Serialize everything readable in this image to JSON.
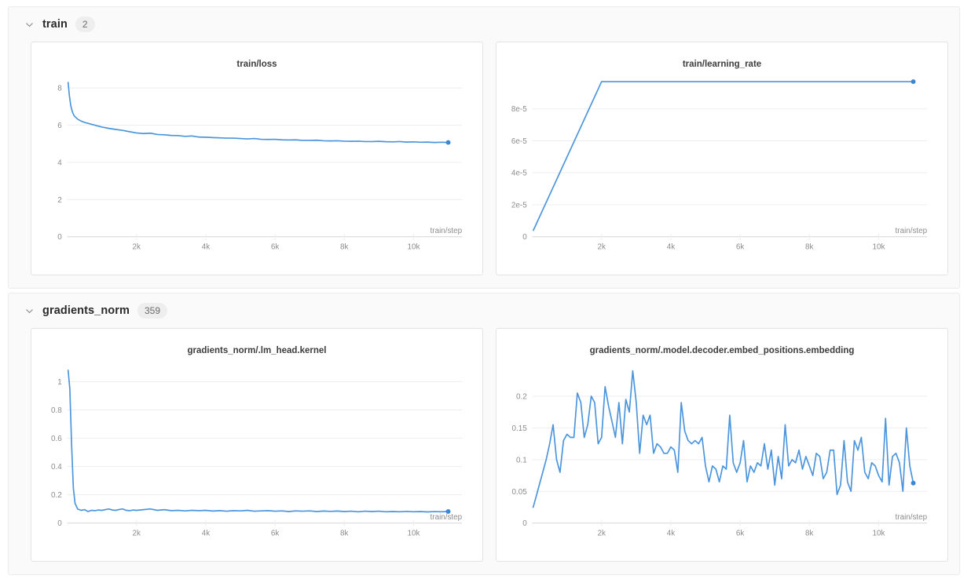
{
  "colors": {
    "line": "#4b95dd",
    "line_dot": "#3a87d4",
    "grid_line": "#ededed",
    "axis_line": "#d6d6d6",
    "tick_text": "#8c8c8c",
    "title_text": "#3d3d3d",
    "panel_bg": "#fafafa",
    "badge_bg": "#eeeeee",
    "badge_text": "#6b6b6b"
  },
  "icons": {
    "collapse": "chevron-down"
  },
  "sections": [
    {
      "label": "train",
      "count": "2",
      "chart_ids": [
        0,
        1
      ]
    },
    {
      "label": "gradients_norm",
      "count": "359",
      "chart_ids": [
        2,
        3
      ]
    }
  ],
  "chart_data": [
    {
      "type": "line",
      "title": "train/loss",
      "xlabel": "train/step",
      "xlim": [
        0,
        11400
      ],
      "ylim": [
        0,
        8.6
      ],
      "grid": true,
      "end_dot": true,
      "yticks": [
        {
          "v": 0,
          "t": "0"
        },
        {
          "v": 2,
          "t": "2"
        },
        {
          "v": 4,
          "t": "4"
        },
        {
          "v": 6,
          "t": "6"
        },
        {
          "v": 8,
          "t": "8"
        }
      ],
      "xticks": [
        {
          "v": 2000,
          "t": "2k"
        },
        {
          "v": 4000,
          "t": "4k"
        },
        {
          "v": 6000,
          "t": "6k"
        },
        {
          "v": 8000,
          "t": "8k"
        },
        {
          "v": 10000,
          "t": "10k"
        }
      ],
      "points": [
        [
          25,
          8.3
        ],
        [
          60,
          7.6
        ],
        [
          100,
          7.05
        ],
        [
          150,
          6.7
        ],
        [
          200,
          6.5
        ],
        [
          300,
          6.32
        ],
        [
          400,
          6.22
        ],
        [
          500,
          6.15
        ],
        [
          600,
          6.1
        ],
        [
          700,
          6.05
        ],
        [
          800,
          6.0
        ],
        [
          900,
          5.95
        ],
        [
          1000,
          5.9
        ],
        [
          1200,
          5.83
        ],
        [
          1400,
          5.77
        ],
        [
          1600,
          5.72
        ],
        [
          1800,
          5.65
        ],
        [
          2000,
          5.58
        ],
        [
          2200,
          5.55
        ],
        [
          2400,
          5.57
        ],
        [
          2600,
          5.5
        ],
        [
          2800,
          5.48
        ],
        [
          3000,
          5.45
        ],
        [
          3200,
          5.44
        ],
        [
          3400,
          5.4
        ],
        [
          3600,
          5.42
        ],
        [
          3800,
          5.36
        ],
        [
          4000,
          5.35
        ],
        [
          4200,
          5.33
        ],
        [
          4400,
          5.32
        ],
        [
          4600,
          5.3
        ],
        [
          4800,
          5.3
        ],
        [
          5000,
          5.28
        ],
        [
          5200,
          5.26
        ],
        [
          5400,
          5.28
        ],
        [
          5600,
          5.24
        ],
        [
          5800,
          5.23
        ],
        [
          6000,
          5.24
        ],
        [
          6200,
          5.21
        ],
        [
          6400,
          5.2
        ],
        [
          6600,
          5.21
        ],
        [
          6800,
          5.18
        ],
        [
          7000,
          5.18
        ],
        [
          7200,
          5.19
        ],
        [
          7400,
          5.16
        ],
        [
          7600,
          5.15
        ],
        [
          7800,
          5.16
        ],
        [
          8000,
          5.14
        ],
        [
          8200,
          5.13
        ],
        [
          8400,
          5.14
        ],
        [
          8600,
          5.12
        ],
        [
          8800,
          5.12
        ],
        [
          9000,
          5.13
        ],
        [
          9200,
          5.11
        ],
        [
          9400,
          5.1
        ],
        [
          9600,
          5.12
        ],
        [
          9800,
          5.09
        ],
        [
          10000,
          5.1
        ],
        [
          10200,
          5.08
        ],
        [
          10400,
          5.09
        ],
        [
          10600,
          5.07
        ],
        [
          10800,
          5.08
        ],
        [
          11000,
          5.07
        ]
      ]
    },
    {
      "type": "line",
      "title": "train/learning_rate",
      "xlabel": "train/step",
      "xlim": [
        0,
        11400
      ],
      "ylim": [
        0,
        0.0001
      ],
      "grid": true,
      "end_dot": true,
      "yticks": [
        {
          "v": 0,
          "t": "0"
        },
        {
          "v": 2e-05,
          "t": "2e-5"
        },
        {
          "v": 4e-05,
          "t": "4e-5"
        },
        {
          "v": 6e-05,
          "t": "6e-5"
        },
        {
          "v": 8e-05,
          "t": "8e-5"
        }
      ],
      "xticks": [
        {
          "v": 2000,
          "t": "2k"
        },
        {
          "v": 4000,
          "t": "4k"
        },
        {
          "v": 6000,
          "t": "6k"
        },
        {
          "v": 8000,
          "t": "8k"
        },
        {
          "v": 10000,
          "t": "10k"
        }
      ],
      "points": [
        [
          30,
          4e-06
        ],
        [
          2000,
          9.7e-05
        ],
        [
          11000,
          9.7e-05
        ]
      ]
    },
    {
      "type": "line",
      "title": "gradients_norm/.lm_head.kernel",
      "xlabel": "train/step",
      "xlim": [
        0,
        11400
      ],
      "ylim": [
        0,
        1.13
      ],
      "grid": true,
      "end_dot": true,
      "yticks": [
        {
          "v": 0,
          "t": "0"
        },
        {
          "v": 0.2,
          "t": "0.2"
        },
        {
          "v": 0.4,
          "t": "0.4"
        },
        {
          "v": 0.6,
          "t": "0.6"
        },
        {
          "v": 0.8,
          "t": "0.8"
        },
        {
          "v": 1,
          "t": "1"
        }
      ],
      "xticks": [
        {
          "v": 2000,
          "t": "2k"
        },
        {
          "v": 4000,
          "t": "4k"
        },
        {
          "v": 6000,
          "t": "6k"
        },
        {
          "v": 8000,
          "t": "8k"
        },
        {
          "v": 10000,
          "t": "10k"
        }
      ],
      "points": [
        [
          25,
          1.08
        ],
        [
          75,
          0.95
        ],
        [
          125,
          0.55
        ],
        [
          175,
          0.25
        ],
        [
          225,
          0.14
        ],
        [
          300,
          0.1
        ],
        [
          400,
          0.09
        ],
        [
          500,
          0.095
        ],
        [
          600,
          0.082
        ],
        [
          700,
          0.09
        ],
        [
          800,
          0.088
        ],
        [
          900,
          0.092
        ],
        [
          1000,
          0.09
        ],
        [
          1100,
          0.095
        ],
        [
          1200,
          0.1
        ],
        [
          1300,
          0.092
        ],
        [
          1400,
          0.09
        ],
        [
          1500,
          0.096
        ],
        [
          1600,
          0.1
        ],
        [
          1700,
          0.09
        ],
        [
          1800,
          0.088
        ],
        [
          1900,
          0.092
        ],
        [
          2000,
          0.09
        ],
        [
          2200,
          0.095
        ],
        [
          2400,
          0.1
        ],
        [
          2600,
          0.09
        ],
        [
          2800,
          0.095
        ],
        [
          3000,
          0.088
        ],
        [
          3200,
          0.09
        ],
        [
          3400,
          0.086
        ],
        [
          3600,
          0.09
        ],
        [
          3800,
          0.088
        ],
        [
          4000,
          0.09
        ],
        [
          4200,
          0.085
        ],
        [
          4400,
          0.088
        ],
        [
          4600,
          0.084
        ],
        [
          4800,
          0.088
        ],
        [
          5000,
          0.086
        ],
        [
          5200,
          0.09
        ],
        [
          5400,
          0.084
        ],
        [
          5600,
          0.086
        ],
        [
          5800,
          0.088
        ],
        [
          6000,
          0.084
        ],
        [
          6200,
          0.086
        ],
        [
          6400,
          0.082
        ],
        [
          6600,
          0.086
        ],
        [
          6800,
          0.084
        ],
        [
          7000,
          0.086
        ],
        [
          7200,
          0.082
        ],
        [
          7400,
          0.085
        ],
        [
          7600,
          0.083
        ],
        [
          7800,
          0.085
        ],
        [
          8000,
          0.082
        ],
        [
          8200,
          0.084
        ],
        [
          8400,
          0.08
        ],
        [
          8600,
          0.084
        ],
        [
          8800,
          0.082
        ],
        [
          9000,
          0.084
        ],
        [
          9200,
          0.08
        ],
        [
          9400,
          0.082
        ],
        [
          9600,
          0.08
        ],
        [
          9800,
          0.083
        ],
        [
          10000,
          0.08
        ],
        [
          10200,
          0.082
        ],
        [
          10400,
          0.079
        ],
        [
          10600,
          0.081
        ],
        [
          10800,
          0.08
        ],
        [
          11000,
          0.082
        ]
      ]
    },
    {
      "type": "line",
      "title": "gradients_norm/.model.decoder.embed_positions.embedding",
      "xlabel": "train/step",
      "xlim": [
        0,
        11400
      ],
      "ylim": [
        0,
        0.252
      ],
      "grid": true,
      "end_dot": true,
      "yticks": [
        {
          "v": 0,
          "t": "0"
        },
        {
          "v": 0.05,
          "t": "0.05"
        },
        {
          "v": 0.1,
          "t": "0.1"
        },
        {
          "v": 0.15,
          "t": "0.15"
        },
        {
          "v": 0.2,
          "t": "0.2"
        }
      ],
      "xticks": [
        {
          "v": 2000,
          "t": "2k"
        },
        {
          "v": 4000,
          "t": "4k"
        },
        {
          "v": 6000,
          "t": "6k"
        },
        {
          "v": 8000,
          "t": "8k"
        },
        {
          "v": 10000,
          "t": "10k"
        }
      ],
      "points": [
        [
          25,
          0.025
        ],
        [
          100,
          0.04
        ],
        [
          200,
          0.06
        ],
        [
          300,
          0.08
        ],
        [
          400,
          0.1
        ],
        [
          500,
          0.125
        ],
        [
          600,
          0.155
        ],
        [
          700,
          0.1
        ],
        [
          800,
          0.08
        ],
        [
          900,
          0.13
        ],
        [
          1000,
          0.14
        ],
        [
          1100,
          0.135
        ],
        [
          1200,
          0.135
        ],
        [
          1300,
          0.205
        ],
        [
          1400,
          0.19
        ],
        [
          1500,
          0.135
        ],
        [
          1600,
          0.155
        ],
        [
          1700,
          0.2
        ],
        [
          1800,
          0.19
        ],
        [
          1900,
          0.125
        ],
        [
          2000,
          0.135
        ],
        [
          2100,
          0.215
        ],
        [
          2200,
          0.185
        ],
        [
          2300,
          0.16
        ],
        [
          2400,
          0.135
        ],
        [
          2500,
          0.19
        ],
        [
          2600,
          0.125
        ],
        [
          2700,
          0.195
        ],
        [
          2800,
          0.175
        ],
        [
          2900,
          0.24
        ],
        [
          3000,
          0.19
        ],
        [
          3100,
          0.11
        ],
        [
          3200,
          0.17
        ],
        [
          3300,
          0.155
        ],
        [
          3400,
          0.17
        ],
        [
          3500,
          0.11
        ],
        [
          3600,
          0.125
        ],
        [
          3700,
          0.12
        ],
        [
          3800,
          0.11
        ],
        [
          3900,
          0.11
        ],
        [
          4000,
          0.12
        ],
        [
          4100,
          0.115
        ],
        [
          4200,
          0.08
        ],
        [
          4300,
          0.19
        ],
        [
          4400,
          0.145
        ],
        [
          4500,
          0.13
        ],
        [
          4600,
          0.125
        ],
        [
          4700,
          0.13
        ],
        [
          4800,
          0.125
        ],
        [
          4900,
          0.135
        ],
        [
          5000,
          0.09
        ],
        [
          5100,
          0.065
        ],
        [
          5200,
          0.09
        ],
        [
          5300,
          0.085
        ],
        [
          5400,
          0.065
        ],
        [
          5500,
          0.09
        ],
        [
          5600,
          0.085
        ],
        [
          5700,
          0.17
        ],
        [
          5800,
          0.095
        ],
        [
          5900,
          0.08
        ],
        [
          6000,
          0.095
        ],
        [
          6100,
          0.13
        ],
        [
          6200,
          0.065
        ],
        [
          6300,
          0.09
        ],
        [
          6400,
          0.08
        ],
        [
          6500,
          0.095
        ],
        [
          6600,
          0.09
        ],
        [
          6700,
          0.125
        ],
        [
          6800,
          0.085
        ],
        [
          6900,
          0.115
        ],
        [
          7000,
          0.06
        ],
        [
          7100,
          0.105
        ],
        [
          7200,
          0.07
        ],
        [
          7300,
          0.155
        ],
        [
          7400,
          0.09
        ],
        [
          7500,
          0.1
        ],
        [
          7600,
          0.095
        ],
        [
          7700,
          0.115
        ],
        [
          7800,
          0.085
        ],
        [
          7900,
          0.105
        ],
        [
          8000,
          0.09
        ],
        [
          8100,
          0.075
        ],
        [
          8200,
          0.11
        ],
        [
          8300,
          0.105
        ],
        [
          8400,
          0.07
        ],
        [
          8500,
          0.08
        ],
        [
          8600,
          0.115
        ],
        [
          8700,
          0.115
        ],
        [
          8800,
          0.045
        ],
        [
          8900,
          0.06
        ],
        [
          9000,
          0.13
        ],
        [
          9100,
          0.065
        ],
        [
          9200,
          0.05
        ],
        [
          9300,
          0.13
        ],
        [
          9400,
          0.115
        ],
        [
          9500,
          0.135
        ],
        [
          9600,
          0.08
        ],
        [
          9700,
          0.07
        ],
        [
          9800,
          0.095
        ],
        [
          9900,
          0.09
        ],
        [
          10000,
          0.075
        ],
        [
          10100,
          0.065
        ],
        [
          10200,
          0.165
        ],
        [
          10300,
          0.06
        ],
        [
          10400,
          0.105
        ],
        [
          10500,
          0.11
        ],
        [
          10600,
          0.095
        ],
        [
          10700,
          0.05
        ],
        [
          10800,
          0.15
        ],
        [
          10900,
          0.09
        ],
        [
          11000,
          0.063
        ]
      ]
    }
  ]
}
